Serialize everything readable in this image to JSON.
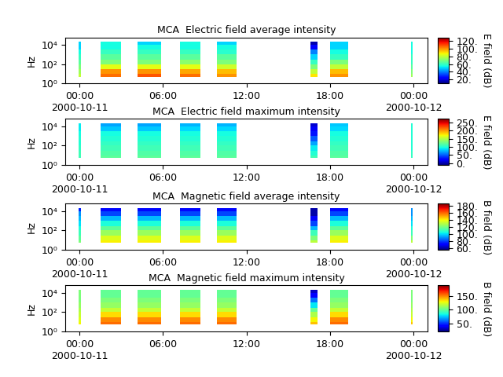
{
  "chart_data": [
    {
      "type": "heatmap",
      "title": "MCA  Electric field average intensity",
      "y_label": "Hz",
      "colorbar_label": "E field (dB)",
      "log": "y",
      "x_edges": [
        -0.05,
        0.1,
        1.5,
        3.0,
        4.2,
        5.9,
        7.2,
        8.7,
        9.9,
        11.3,
        16.6,
        17.1,
        18.0,
        19.3,
        23.8,
        23.95
      ],
      "y_edges": [
        5,
        10,
        30,
        100,
        300,
        1000,
        3000,
        10000,
        20000
      ],
      "cells": [
        [
          80,
          null,
          105,
          null,
          108,
          null,
          105,
          null,
          100,
          null,
          90,
          null,
          100,
          null,
          75
        ],
        [
          75,
          null,
          100,
          null,
          100,
          null,
          98,
          null,
          95,
          null,
          80,
          null,
          95,
          null,
          70
        ],
        [
          70,
          null,
          85,
          null,
          85,
          null,
          85,
          null,
          82,
          null,
          70,
          null,
          80,
          null,
          65
        ],
        [
          65,
          null,
          70,
          null,
          70,
          null,
          72,
          null,
          70,
          null,
          60,
          null,
          70,
          null,
          60
        ],
        [
          60,
          null,
          65,
          null,
          65,
          null,
          65,
          null,
          65,
          null,
          50,
          null,
          60,
          null,
          60
        ],
        [
          55,
          null,
          60,
          null,
          60,
          null,
          60,
          null,
          58,
          null,
          40,
          null,
          55,
          null,
          55
        ],
        [
          50,
          null,
          55,
          null,
          55,
          null,
          55,
          null,
          55,
          null,
          25,
          null,
          50,
          null,
          55
        ],
        [
          50,
          null,
          55,
          null,
          50,
          null,
          55,
          null,
          50,
          null,
          15,
          null,
          50,
          null,
          55
        ]
      ],
      "xlim": [
        -1,
        25
      ],
      "xticks": [
        {
          "value": 0,
          "label": "00:00\n2000-10-11"
        },
        {
          "value": 6,
          "label": "06:00"
        },
        {
          "value": 12,
          "label": "12:00"
        },
        {
          "value": 18,
          "label": "18:00"
        },
        {
          "value": 24,
          "label": "00:00\n2000-10-12"
        }
      ],
      "ylim": [
        1,
        60000
      ],
      "yticks": [
        {
          "value": 1,
          "label": "10⁰"
        },
        {
          "value": 100,
          "label": "10²"
        },
        {
          "value": 10000,
          "label": "10⁴"
        }
      ],
      "color_range": [
        10,
        130
      ],
      "color_ticks": [
        {
          "value": 20,
          "label": "20."
        },
        {
          "value": 40,
          "label": "40."
        },
        {
          "value": 60,
          "label": "60."
        },
        {
          "value": 80,
          "label": "80."
        },
        {
          "value": 100,
          "label": "100."
        },
        {
          "value": 120,
          "label": "120."
        }
      ]
    },
    {
      "type": "heatmap",
      "title": "MCA  Electric field maximum intensity",
      "y_label": "Hz",
      "colorbar_label": "E field (dB)",
      "log": "y",
      "x_edges": [
        -0.05,
        0.1,
        1.5,
        3.0,
        4.2,
        5.9,
        7.2,
        8.7,
        9.9,
        11.3,
        16.6,
        17.1,
        18.0,
        19.3,
        23.8,
        23.95
      ],
      "y_edges": [
        5,
        10,
        30,
        100,
        300,
        1000,
        3000,
        10000,
        20000
      ],
      "cells": [
        [
          110,
          null,
          120,
          null,
          120,
          null,
          120,
          null,
          118,
          null,
          110,
          null,
          118,
          null,
          105
        ],
        [
          110,
          null,
          115,
          null,
          115,
          null,
          115,
          null,
          115,
          null,
          100,
          null,
          115,
          null,
          105
        ],
        [
          105,
          null,
          110,
          null,
          110,
          null,
          110,
          null,
          110,
          null,
          90,
          null,
          110,
          null,
          100
        ],
        [
          100,
          null,
          105,
          null,
          105,
          null,
          105,
          null,
          105,
          null,
          70,
          null,
          105,
          null,
          100
        ],
        [
          100,
          null,
          100,
          null,
          100,
          null,
          100,
          null,
          100,
          null,
          50,
          null,
          100,
          null,
          100
        ],
        [
          95,
          null,
          95,
          null,
          95,
          null,
          95,
          null,
          95,
          null,
          30,
          null,
          95,
          null,
          100
        ],
        [
          90,
          null,
          80,
          null,
          80,
          null,
          85,
          null,
          85,
          null,
          20,
          null,
          85,
          null,
          100
        ],
        [
          90,
          null,
          70,
          null,
          70,
          null,
          75,
          null,
          75,
          null,
          10,
          null,
          80,
          null,
          100
        ]
      ],
      "xlim": [
        -1,
        25
      ],
      "xticks": [
        {
          "value": 0,
          "label": "00:00\n2000-10-11"
        },
        {
          "value": 6,
          "label": "06:00"
        },
        {
          "value": 12,
          "label": "12:00"
        },
        {
          "value": 18,
          "label": "18:00"
        },
        {
          "value": 24,
          "label": "00:00\n2000-10-12"
        }
      ],
      "ylim": [
        1,
        60000
      ],
      "yticks": [
        {
          "value": 1,
          "label": "10⁰"
        },
        {
          "value": 100,
          "label": "10²"
        },
        {
          "value": 10000,
          "label": "10⁴"
        }
      ],
      "color_range": [
        -10,
        270
      ],
      "color_ticks": [
        {
          "value": 0,
          "label": "0."
        },
        {
          "value": 50,
          "label": "50."
        },
        {
          "value": 100,
          "label": "100."
        },
        {
          "value": 150,
          "label": "150."
        },
        {
          "value": 200,
          "label": "200."
        },
        {
          "value": 250,
          "label": "250."
        }
      ]
    },
    {
      "type": "heatmap",
      "title": "MCA  Magnetic field average intensity",
      "y_label": "Hz",
      "colorbar_label": "B field (dB)",
      "log": "y",
      "x_edges": [
        -0.05,
        0.1,
        1.5,
        3.0,
        4.2,
        5.9,
        7.2,
        8.7,
        9.9,
        11.3,
        16.6,
        17.1,
        18.0,
        19.3,
        23.8,
        23.95
      ],
      "y_edges": [
        5,
        10,
        30,
        100,
        300,
        1000,
        3000,
        10000,
        20000
      ],
      "cells": [
        [
          120,
          null,
          140,
          null,
          140,
          null,
          140,
          null,
          140,
          null,
          130,
          null,
          140,
          null,
          130
        ],
        [
          115,
          null,
          135,
          null,
          135,
          null,
          135,
          null,
          135,
          null,
          120,
          null,
          135,
          null,
          120
        ],
        [
          110,
          null,
          125,
          null,
          125,
          null,
          125,
          null,
          125,
          null,
          110,
          null,
          125,
          null,
          110
        ],
        [
          105,
          null,
          115,
          null,
          115,
          null,
          115,
          null,
          115,
          null,
          95,
          null,
          115,
          null,
          105
        ],
        [
          100,
          null,
          105,
          null,
          105,
          null,
          105,
          null,
          105,
          null,
          80,
          null,
          105,
          null,
          100
        ],
        [
          95,
          null,
          95,
          null,
          95,
          null,
          95,
          null,
          95,
          null,
          70,
          null,
          95,
          null,
          95
        ],
        [
          90,
          null,
          80,
          null,
          80,
          null,
          80,
          null,
          80,
          null,
          60,
          null,
          80,
          null,
          90
        ],
        [
          75,
          null,
          72,
          null,
          72,
          null,
          72,
          null,
          72,
          null,
          60,
          null,
          72,
          null,
          90
        ]
      ],
      "xlim": [
        -1,
        25
      ],
      "xticks": [
        {
          "value": 0,
          "label": "00:00\n2000-10-11"
        },
        {
          "value": 6,
          "label": "06:00"
        },
        {
          "value": 12,
          "label": "12:00"
        },
        {
          "value": 18,
          "label": "18:00"
        },
        {
          "value": 24,
          "label": "00:00\n2000-10-12"
        }
      ],
      "ylim": [
        1,
        60000
      ],
      "yticks": [
        {
          "value": 1,
          "label": "10⁰"
        },
        {
          "value": 100,
          "label": "10²"
        },
        {
          "value": 10000,
          "label": "10⁴"
        }
      ],
      "color_range": [
        55,
        185
      ],
      "color_ticks": [
        {
          "value": 60,
          "label": "60."
        },
        {
          "value": 80,
          "label": "80."
        },
        {
          "value": 100,
          "label": "100."
        },
        {
          "value": 120,
          "label": "120."
        },
        {
          "value": 140,
          "label": "140."
        },
        {
          "value": 160,
          "label": "160."
        },
        {
          "value": 180,
          "label": "180."
        }
      ]
    },
    {
      "type": "heatmap",
      "title": "MCA  Magnetic field maximum intensity",
      "y_label": "Hz",
      "colorbar_label": "B field (dB)",
      "log": "y",
      "x_edges": [
        -0.05,
        0.1,
        1.5,
        3.0,
        4.2,
        5.9,
        7.2,
        8.7,
        9.9,
        11.3,
        16.6,
        17.1,
        18.0,
        19.3,
        23.8,
        23.95
      ],
      "y_edges": [
        5,
        10,
        30,
        100,
        300,
        1000,
        3000,
        10000,
        20000
      ],
      "cells": [
        [
          130,
          null,
          155,
          null,
          155,
          null,
          155,
          null,
          155,
          null,
          140,
          null,
          155,
          null,
          140
        ],
        [
          125,
          null,
          150,
          null,
          150,
          null,
          150,
          null,
          150,
          null,
          130,
          null,
          150,
          null,
          130
        ],
        [
          120,
          null,
          135,
          null,
          135,
          null,
          135,
          null,
          135,
          null,
          115,
          null,
          135,
          null,
          120
        ],
        [
          115,
          null,
          120,
          null,
          120,
          null,
          120,
          null,
          120,
          null,
          100,
          null,
          120,
          null,
          115
        ],
        [
          110,
          null,
          110,
          null,
          110,
          null,
          110,
          null,
          110,
          null,
          80,
          null,
          110,
          null,
          110
        ],
        [
          105,
          null,
          105,
          null,
          105,
          null,
          105,
          null,
          105,
          null,
          60,
          null,
          105,
          null,
          105
        ],
        [
          105,
          null,
          100,
          null,
          100,
          null,
          100,
          null,
          100,
          null,
          40,
          null,
          100,
          null,
          105
        ],
        [
          105,
          null,
          100,
          null,
          100,
          null,
          100,
          null,
          100,
          null,
          30,
          null,
          100,
          null,
          105
        ]
      ],
      "xlim": [
        -1,
        25
      ],
      "xticks": [
        {
          "value": 0,
          "label": "00:00\n2000-10-11"
        },
        {
          "value": 6,
          "label": "06:00"
        },
        {
          "value": 12,
          "label": "12:00"
        },
        {
          "value": 18,
          "label": "18:00"
        },
        {
          "value": 24,
          "label": "00:00\n2000-10-12"
        }
      ],
      "ylim": [
        1,
        60000
      ],
      "yticks": [
        {
          "value": 1,
          "label": "10⁰"
        },
        {
          "value": 100,
          "label": "10²"
        },
        {
          "value": 10000,
          "label": "10⁴"
        }
      ],
      "color_range": [
        20,
        190
      ],
      "color_ticks": [
        {
          "value": 50,
          "label": "50."
        },
        {
          "value": 100,
          "label": "100."
        },
        {
          "value": 150,
          "label": "150."
        }
      ]
    }
  ]
}
